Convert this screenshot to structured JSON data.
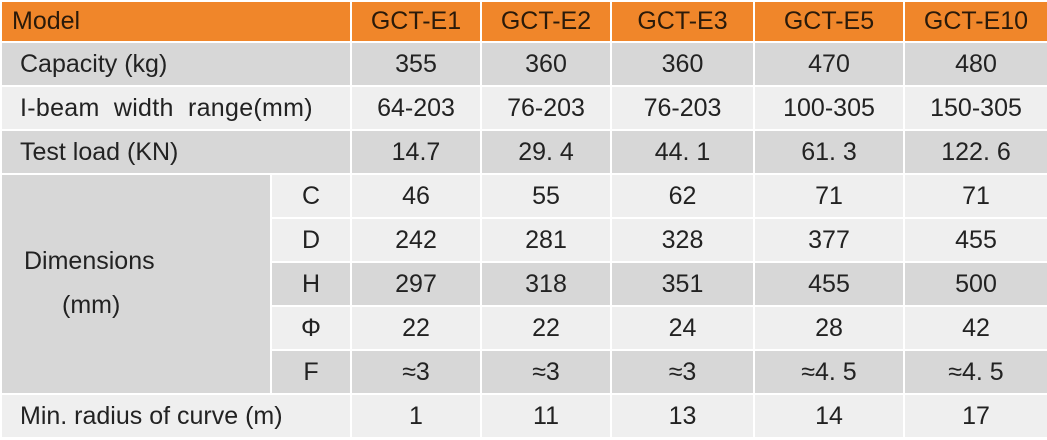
{
  "table": {
    "model_label": "Model",
    "models": [
      "GCT-E1",
      "GCT-E2",
      "GCT-E3",
      "GCT-E5",
      "GCT-E10"
    ],
    "capacity": {
      "label": "Capacity (kg)",
      "values": [
        "355",
        "360",
        "360",
        "470",
        "480"
      ]
    },
    "beam_width": {
      "label": "I-beam width range(mm)",
      "values": [
        "64-203",
        "76-203",
        "76-203",
        "100-305",
        "150-305"
      ]
    },
    "test_load": {
      "label": "Test load (KN)",
      "values": [
        "14.7",
        "29. 4",
        "44. 1",
        "61. 3",
        "122. 6"
      ]
    },
    "dimensions": {
      "label_line1": "Dimensions",
      "label_line2": "(mm)",
      "rows": [
        {
          "key": "C",
          "values": [
            "46",
            "55",
            "62",
            "71",
            "71"
          ]
        },
        {
          "key": "D",
          "values": [
            "242",
            "281",
            "328",
            "377",
            "455"
          ]
        },
        {
          "key": "H",
          "values": [
            "297",
            "318",
            "351",
            "455",
            "500"
          ]
        },
        {
          "key": "Φ",
          "values": [
            "22",
            "22",
            "24",
            "28",
            "42"
          ]
        },
        {
          "key": "F",
          "values": [
            "≈3",
            "≈3",
            "≈3",
            "≈4. 5",
            "≈4. 5"
          ]
        }
      ]
    },
    "min_radius": {
      "label": "Min. radius of curve (m)",
      "values": [
        "1",
        "11",
        "13",
        "14",
        "17"
      ]
    },
    "colors": {
      "header": "#f0862a",
      "grey_row": "#d7d7d7",
      "light_row": "#efefef"
    }
  }
}
